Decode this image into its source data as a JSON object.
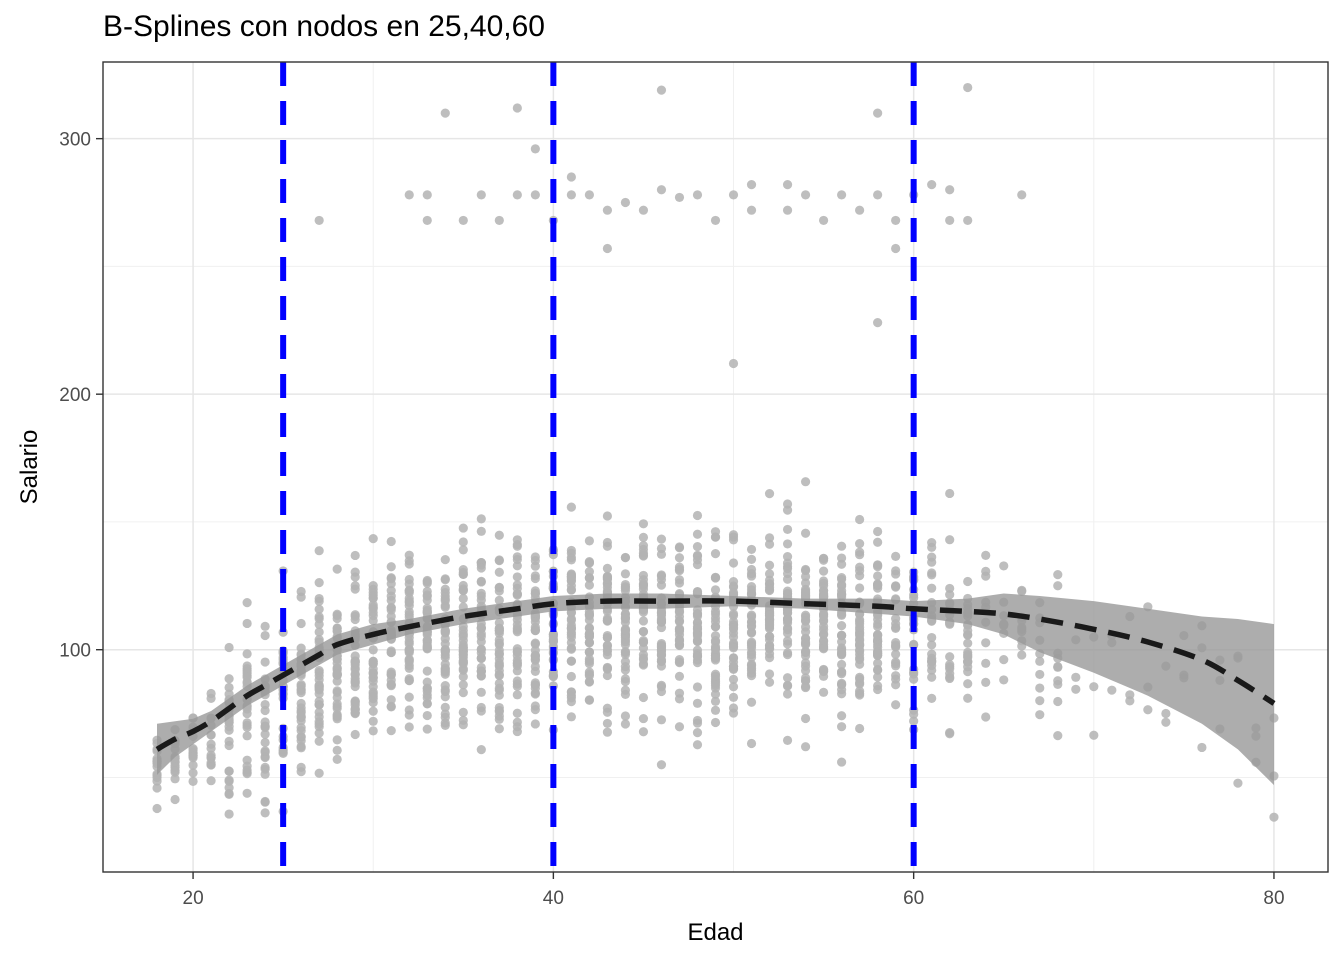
{
  "chart_data": {
    "type": "scatter",
    "title": "B-Splines con nodos en 25,40,60",
    "xlabel": "Edad",
    "ylabel": "Salario",
    "xlim": [
      15,
      83
    ],
    "ylim": [
      13,
      330
    ],
    "x_ticks": [
      20,
      40,
      60,
      80
    ],
    "y_ticks": [
      100,
      200,
      300
    ],
    "x_tick_labels": [
      "20",
      "40",
      "60",
      "80"
    ],
    "y_tick_labels": [
      "100",
      "200",
      "300"
    ],
    "grid": true,
    "knots": [
      25,
      40,
      60
    ],
    "knot_color": "#0000ff",
    "point_color": "#b3b3b3",
    "fit_color": "#1a1a1a",
    "band_color": "#999999",
    "fit_curve": {
      "x": [
        18,
        19,
        20,
        21,
        22,
        23,
        24,
        25,
        26,
        27,
        28,
        30,
        32,
        35,
        38,
        40,
        43,
        46,
        50,
        54,
        58,
        60,
        63,
        65,
        67,
        70,
        73,
        76,
        78,
        80
      ],
      "y": [
        61,
        65,
        68,
        72,
        77,
        82,
        86,
        90,
        94,
        98,
        102,
        106,
        109,
        113,
        116,
        118,
        119,
        119,
        119,
        118,
        117,
        116,
        115,
        114,
        112,
        108,
        103,
        96,
        88,
        79
      ],
      "lower": [
        51,
        58,
        63,
        68,
        73,
        78,
        82,
        86,
        90,
        94,
        98,
        102,
        106,
        110,
        113,
        115,
        116,
        116,
        117,
        116,
        114,
        113,
        110,
        106,
        99,
        91,
        82,
        71,
        61,
        47
      ],
      "upper": [
        71,
        72,
        73,
        76,
        81,
        86,
        90,
        94,
        98,
        102,
        106,
        110,
        112,
        116,
        119,
        121,
        122,
        122,
        121,
        120,
        120,
        119,
        120,
        122,
        121,
        119,
        116,
        113,
        112,
        110
      ]
    },
    "outliers": [
      [
        27,
        268
      ],
      [
        32,
        278
      ],
      [
        33,
        268
      ],
      [
        33,
        278
      ],
      [
        34,
        310
      ],
      [
        35,
        268
      ],
      [
        36,
        278
      ],
      [
        37,
        268
      ],
      [
        38,
        278
      ],
      [
        38,
        312
      ],
      [
        39,
        296
      ],
      [
        39,
        278
      ],
      [
        40,
        268
      ],
      [
        41,
        285
      ],
      [
        41,
        278
      ],
      [
        42,
        278
      ],
      [
        43,
        257
      ],
      [
        43,
        272
      ],
      [
        44,
        275
      ],
      [
        45,
        272
      ],
      [
        46,
        280
      ],
      [
        46,
        319
      ],
      [
        47,
        277
      ],
      [
        48,
        278
      ],
      [
        49,
        268
      ],
      [
        50,
        278
      ],
      [
        51,
        282
      ],
      [
        51,
        272
      ],
      [
        53,
        282
      ],
      [
        53,
        272
      ],
      [
        54,
        278
      ],
      [
        55,
        268
      ],
      [
        56,
        278
      ],
      [
        57,
        272
      ],
      [
        58,
        278
      ],
      [
        58,
        310
      ],
      [
        59,
        268
      ],
      [
        59,
        257
      ],
      [
        60,
        278
      ],
      [
        61,
        282
      ],
      [
        62,
        280
      ],
      [
        62,
        268
      ],
      [
        63,
        268
      ],
      [
        63,
        320
      ],
      [
        66,
        278
      ],
      [
        58,
        228
      ],
      [
        50,
        212
      ]
    ]
  }
}
